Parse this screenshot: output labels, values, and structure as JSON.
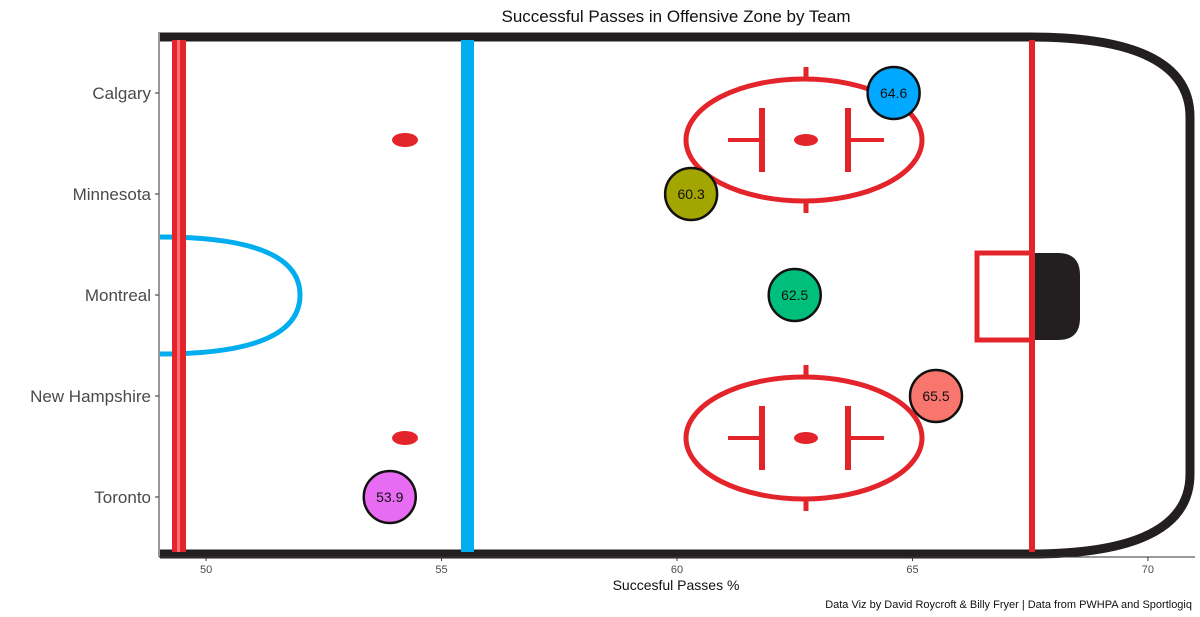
{
  "chart_data": {
    "type": "scatter",
    "title": "Successful Passes in Offensive Zone by Team",
    "xlabel": "Succesful Passes %",
    "ylabel": "",
    "caption": "Data Viz by David Roycroft & Billy Fryer | Data from PWHPA and Sportlogiq",
    "xlim": [
      49,
      71
    ],
    "xticks": [
      50,
      55,
      60,
      65,
      70
    ],
    "categories": [
      "Calgary",
      "Minnesota",
      "Montreal",
      "New Hampshire",
      "Toronto"
    ],
    "points": [
      {
        "team": "Calgary",
        "x": 64.6,
        "label": "64.6",
        "color": "#00A9FF"
      },
      {
        "team": "Minnesota",
        "x": 60.3,
        "label": "60.3",
        "color": "#A3A500"
      },
      {
        "team": "Montreal",
        "x": 62.5,
        "label": "62.5",
        "color": "#00BF7D"
      },
      {
        "team": "New Hampshire",
        "x": 65.5,
        "label": "65.5",
        "color": "#F8766D"
      },
      {
        "team": "Toronto",
        "x": 53.9,
        "label": "53.9",
        "color": "#E76BF3"
      }
    ],
    "grid": false,
    "legend": "none",
    "background": "hockey-rink-offensive-zone",
    "colors": {
      "rink_red": "#E3242B",
      "blue_line": "#00AEEF",
      "boards": "#231F20"
    }
  }
}
